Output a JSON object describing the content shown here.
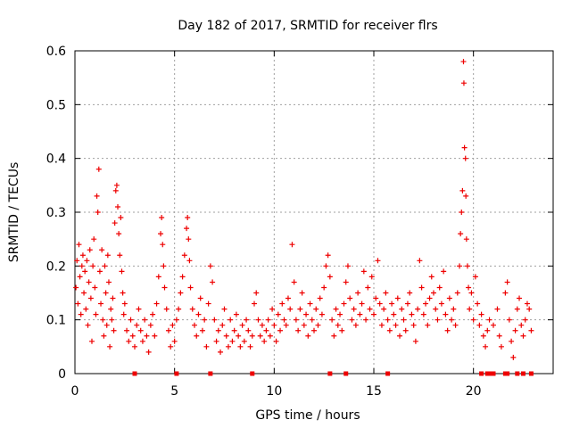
{
  "chart_data": {
    "type": "scatter",
    "title": "Day 182 of 2017, SRMTID for receiver flrs",
    "xlabel": "GPS time / hours",
    "ylabel": "SRMTID / TECUs",
    "xlim": [
      0,
      24
    ],
    "ylim": [
      0,
      0.6
    ],
    "x_ticks": [
      0,
      5,
      10,
      15,
      20
    ],
    "x_tick_labels": [
      "0",
      "5",
      "10",
      "15",
      "20"
    ],
    "y_ticks": [
      0,
      0.1,
      0.2,
      0.3,
      0.4,
      0.5,
      0.6
    ],
    "y_tick_labels": [
      "0",
      "0.1",
      "0.2",
      "0.3",
      "0.4",
      "0.5",
      "0.6"
    ],
    "grid": true,
    "marker": "plus",
    "series_color": "#ee0000",
    "points": [
      [
        0.05,
        0.16
      ],
      [
        0.1,
        0.21
      ],
      [
        0.15,
        0.13
      ],
      [
        0.2,
        0.24
      ],
      [
        0.25,
        0.18
      ],
      [
        0.3,
        0.11
      ],
      [
        0.35,
        0.2
      ],
      [
        0.4,
        0.22
      ],
      [
        0.45,
        0.15
      ],
      [
        0.5,
        0.19
      ],
      [
        0.55,
        0.12
      ],
      [
        0.6,
        0.21
      ],
      [
        0.65,
        0.09
      ],
      [
        0.7,
        0.17
      ],
      [
        0.75,
        0.23
      ],
      [
        0.8,
        0.14
      ],
      [
        0.85,
        0.06
      ],
      [
        0.9,
        0.2
      ],
      [
        0.95,
        0.25
      ],
      [
        1.0,
        0.16
      ],
      [
        1.05,
        0.11
      ],
      [
        1.1,
        0.33
      ],
      [
        1.15,
        0.3
      ],
      [
        1.2,
        0.38
      ],
      [
        1.25,
        0.19
      ],
      [
        1.3,
        0.13
      ],
      [
        1.35,
        0.23
      ],
      [
        1.4,
        0.1
      ],
      [
        1.45,
        0.07
      ],
      [
        1.5,
        0.2
      ],
      [
        1.55,
        0.15
      ],
      [
        1.6,
        0.09
      ],
      [
        1.65,
        0.22
      ],
      [
        1.7,
        0.17
      ],
      [
        1.75,
        0.05
      ],
      [
        1.8,
        0.12
      ],
      [
        1.85,
        0.1
      ],
      [
        1.9,
        0.14
      ],
      [
        1.95,
        0.08
      ],
      [
        2.0,
        0.28
      ],
      [
        2.05,
        0.34
      ],
      [
        2.1,
        0.35
      ],
      [
        2.15,
        0.31
      ],
      [
        2.2,
        0.26
      ],
      [
        2.25,
        0.22
      ],
      [
        2.3,
        0.29
      ],
      [
        2.35,
        0.19
      ],
      [
        2.4,
        0.15
      ],
      [
        2.45,
        0.11
      ],
      [
        2.5,
        0.13
      ],
      [
        2.6,
        0.08
      ],
      [
        2.7,
        0.06
      ],
      [
        2.8,
        0.1
      ],
      [
        2.9,
        0.07
      ],
      [
        3.0,
        0.05
      ],
      [
        3.1,
        0.09
      ],
      [
        3.2,
        0.12
      ],
      [
        3.3,
        0.08
      ],
      [
        3.4,
        0.06
      ],
      [
        3.5,
        0.1
      ],
      [
        3.6,
        0.07
      ],
      [
        3.7,
        0.04
      ],
      [
        3.8,
        0.09
      ],
      [
        3.9,
        0.11
      ],
      [
        4.0,
        0.07
      ],
      [
        4.1,
        0.13
      ],
      [
        4.2,
        0.18
      ],
      [
        4.3,
        0.26
      ],
      [
        4.35,
        0.29
      ],
      [
        4.4,
        0.24
      ],
      [
        4.45,
        0.2
      ],
      [
        4.5,
        0.16
      ],
      [
        4.6,
        0.12
      ],
      [
        4.7,
        0.08
      ],
      [
        4.8,
        0.05
      ],
      [
        4.9,
        0.09
      ],
      [
        5.0,
        0.06
      ],
      [
        5.1,
        0.1
      ],
      [
        5.2,
        0.12
      ],
      [
        5.3,
        0.15
      ],
      [
        5.4,
        0.18
      ],
      [
        5.5,
        0.22
      ],
      [
        5.6,
        0.27
      ],
      [
        5.65,
        0.29
      ],
      [
        5.7,
        0.25
      ],
      [
        5.75,
        0.21
      ],
      [
        5.8,
        0.16
      ],
      [
        5.9,
        0.12
      ],
      [
        6.0,
        0.09
      ],
      [
        6.1,
        0.07
      ],
      [
        6.2,
        0.11
      ],
      [
        6.3,
        0.14
      ],
      [
        6.4,
        0.08
      ],
      [
        6.5,
        0.1
      ],
      [
        6.6,
        0.05
      ],
      [
        6.7,
        0.13
      ],
      [
        6.8,
        0.2
      ],
      [
        6.9,
        0.17
      ],
      [
        7.0,
        0.1
      ],
      [
        7.1,
        0.06
      ],
      [
        7.2,
        0.08
      ],
      [
        7.3,
        0.04
      ],
      [
        7.4,
        0.09
      ],
      [
        7.5,
        0.12
      ],
      [
        7.6,
        0.07
      ],
      [
        7.7,
        0.05
      ],
      [
        7.8,
        0.1
      ],
      [
        7.9,
        0.06
      ],
      [
        8.0,
        0.08
      ],
      [
        8.1,
        0.11
      ],
      [
        8.2,
        0.07
      ],
      [
        8.3,
        0.05
      ],
      [
        8.4,
        0.09
      ],
      [
        8.5,
        0.06
      ],
      [
        8.6,
        0.1
      ],
      [
        8.7,
        0.08
      ],
      [
        8.8,
        0.05
      ],
      [
        8.9,
        0.07
      ],
      [
        9.0,
        0.13
      ],
      [
        9.1,
        0.15
      ],
      [
        9.2,
        0.1
      ],
      [
        9.3,
        0.07
      ],
      [
        9.4,
        0.09
      ],
      [
        9.5,
        0.06
      ],
      [
        9.6,
        0.08
      ],
      [
        9.7,
        0.1
      ],
      [
        9.8,
        0.07
      ],
      [
        9.9,
        0.12
      ],
      [
        10.0,
        0.09
      ],
      [
        10.1,
        0.06
      ],
      [
        10.2,
        0.11
      ],
      [
        10.3,
        0.08
      ],
      [
        10.4,
        0.13
      ],
      [
        10.5,
        0.1
      ],
      [
        10.6,
        0.09
      ],
      [
        10.7,
        0.14
      ],
      [
        10.8,
        0.12
      ],
      [
        10.9,
        0.24
      ],
      [
        11.0,
        0.17
      ],
      [
        11.1,
        0.1
      ],
      [
        11.2,
        0.08
      ],
      [
        11.3,
        0.12
      ],
      [
        11.4,
        0.15
      ],
      [
        11.5,
        0.09
      ],
      [
        11.6,
        0.11
      ],
      [
        11.7,
        0.07
      ],
      [
        11.8,
        0.13
      ],
      [
        11.9,
        0.1
      ],
      [
        12.0,
        0.08
      ],
      [
        12.1,
        0.12
      ],
      [
        12.2,
        0.09
      ],
      [
        12.3,
        0.14
      ],
      [
        12.4,
        0.11
      ],
      [
        12.5,
        0.16
      ],
      [
        12.6,
        0.2
      ],
      [
        12.7,
        0.22
      ],
      [
        12.8,
        0.18
      ],
      [
        12.9,
        0.1
      ],
      [
        13.0,
        0.07
      ],
      [
        13.1,
        0.12
      ],
      [
        13.2,
        0.09
      ],
      [
        13.3,
        0.11
      ],
      [
        13.4,
        0.08
      ],
      [
        13.5,
        0.13
      ],
      [
        13.6,
        0.17
      ],
      [
        13.7,
        0.2
      ],
      [
        13.8,
        0.14
      ],
      [
        13.9,
        0.1
      ],
      [
        14.0,
        0.12
      ],
      [
        14.1,
        0.09
      ],
      [
        14.2,
        0.15
      ],
      [
        14.3,
        0.11
      ],
      [
        14.4,
        0.13
      ],
      [
        14.5,
        0.19
      ],
      [
        14.6,
        0.1
      ],
      [
        14.7,
        0.16
      ],
      [
        14.8,
        0.12
      ],
      [
        14.9,
        0.18
      ],
      [
        15.0,
        0.11
      ],
      [
        15.1,
        0.14
      ],
      [
        15.2,
        0.21
      ],
      [
        15.3,
        0.13
      ],
      [
        15.4,
        0.09
      ],
      [
        15.5,
        0.12
      ],
      [
        15.6,
        0.15
      ],
      [
        15.7,
        0.1
      ],
      [
        15.8,
        0.08
      ],
      [
        15.9,
        0.13
      ],
      [
        16.0,
        0.11
      ],
      [
        16.1,
        0.09
      ],
      [
        16.2,
        0.14
      ],
      [
        16.3,
        0.07
      ],
      [
        16.4,
        0.12
      ],
      [
        16.5,
        0.1
      ],
      [
        16.6,
        0.08
      ],
      [
        16.7,
        0.13
      ],
      [
        16.8,
        0.15
      ],
      [
        16.9,
        0.11
      ],
      [
        17.0,
        0.09
      ],
      [
        17.1,
        0.06
      ],
      [
        17.2,
        0.12
      ],
      [
        17.3,
        0.21
      ],
      [
        17.4,
        0.16
      ],
      [
        17.5,
        0.11
      ],
      [
        17.6,
        0.13
      ],
      [
        17.7,
        0.09
      ],
      [
        17.8,
        0.14
      ],
      [
        17.9,
        0.18
      ],
      [
        18.0,
        0.15
      ],
      [
        18.1,
        0.12
      ],
      [
        18.2,
        0.1
      ],
      [
        18.3,
        0.16
      ],
      [
        18.4,
        0.13
      ],
      [
        18.5,
        0.19
      ],
      [
        18.6,
        0.11
      ],
      [
        18.7,
        0.08
      ],
      [
        18.8,
        0.14
      ],
      [
        18.9,
        0.1
      ],
      [
        19.0,
        0.12
      ],
      [
        19.1,
        0.09
      ],
      [
        19.2,
        0.15
      ],
      [
        19.3,
        0.2
      ],
      [
        19.35,
        0.26
      ],
      [
        19.4,
        0.3
      ],
      [
        19.45,
        0.34
      ],
      [
        19.5,
        0.58
      ],
      [
        19.52,
        0.54
      ],
      [
        19.55,
        0.42
      ],
      [
        19.6,
        0.4
      ],
      [
        19.62,
        0.33
      ],
      [
        19.65,
        0.25
      ],
      [
        19.7,
        0.2
      ],
      [
        19.75,
        0.16
      ],
      [
        19.8,
        0.12
      ],
      [
        19.9,
        0.15
      ],
      [
        20.0,
        0.1
      ],
      [
        20.1,
        0.18
      ],
      [
        20.2,
        0.13
      ],
      [
        20.3,
        0.09
      ],
      [
        20.4,
        0.11
      ],
      [
        20.5,
        0.07
      ],
      [
        20.6,
        0.05
      ],
      [
        20.7,
        0.08
      ],
      [
        20.8,
        0.1
      ],
      [
        21.0,
        0.09
      ],
      [
        21.2,
        0.12
      ],
      [
        21.3,
        0.07
      ],
      [
        21.4,
        0.05
      ],
      [
        21.6,
        0.15
      ],
      [
        21.7,
        0.17
      ],
      [
        21.8,
        0.1
      ],
      [
        21.9,
        0.06
      ],
      [
        22.0,
        0.03
      ],
      [
        22.1,
        0.08
      ],
      [
        22.2,
        0.12
      ],
      [
        22.3,
        0.14
      ],
      [
        22.4,
        0.09
      ],
      [
        22.5,
        0.07
      ],
      [
        22.6,
        0.1
      ],
      [
        22.7,
        0.13
      ],
      [
        22.8,
        0.12
      ],
      [
        22.9,
        0.08
      ]
    ],
    "baseline_markers_x": [
      3.0,
      5.1,
      6.8,
      8.9,
      12.8,
      13.6,
      15.7,
      20.4,
      20.7,
      20.8,
      20.9,
      21.0,
      21.6,
      21.7,
      22.2,
      22.5,
      22.9
    ]
  }
}
